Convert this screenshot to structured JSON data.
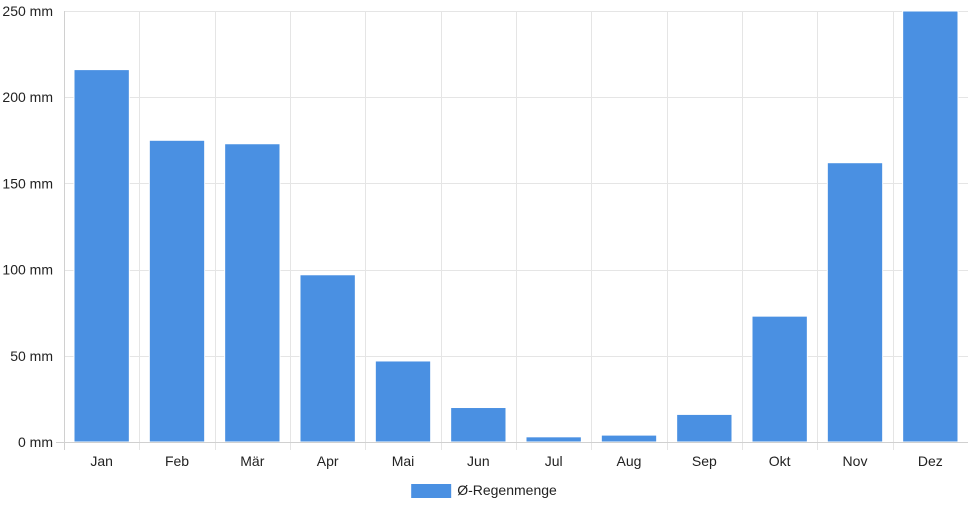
{
  "chart_data": {
    "type": "bar",
    "categories": [
      "Jan",
      "Feb",
      "Mär",
      "Apr",
      "Mai",
      "Jun",
      "Jul",
      "Aug",
      "Sep",
      "Okt",
      "Nov",
      "Dez"
    ],
    "series": [
      {
        "name": "Ø-Regenmenge",
        "values": [
          216,
          175,
          173,
          97,
          47,
          20,
          3,
          4,
          16,
          73,
          162,
          250
        ],
        "color": "#4a90e2"
      }
    ],
    "title": "",
    "xlabel": "",
    "ylabel": "",
    "ylim": [
      0,
      250
    ],
    "yticks": [
      0,
      50,
      100,
      150,
      200,
      250
    ],
    "ytick_labels": [
      "0 mm",
      "50 mm",
      "100 mm",
      "150 mm",
      "200 mm",
      "250 mm"
    ],
    "grid": true,
    "legend_position": "bottom"
  }
}
